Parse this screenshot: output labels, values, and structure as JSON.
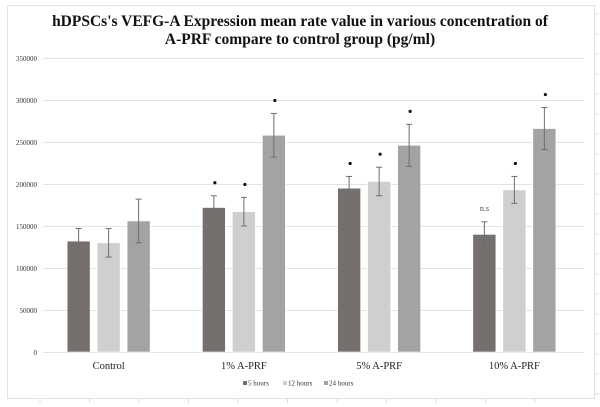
{
  "chart_data": {
    "type": "bar",
    "title": [
      "hDPSCs's VEFG-A Expression mean rate value in various concentration of",
      "A-PRF compare to control group (pg/ml)"
    ],
    "xlabel": "",
    "ylabel": "",
    "ylim": [
      0,
      350000
    ],
    "yticks": [
      0,
      50000,
      100000,
      150000,
      200000,
      250000,
      300000,
      350000
    ],
    "ytick_labels": [
      "0",
      "50000",
      "100000",
      "150000",
      "200000",
      "250000",
      "300000",
      "350000"
    ],
    "grid": true,
    "legend_position": "bottom",
    "categories": [
      "Control",
      "1% A-PRF",
      "5% A-PRF",
      "10% A-PRF"
    ],
    "series": [
      {
        "name": "5 hours",
        "color": "#756f6e",
        "values": [
          132000,
          172000,
          195000,
          140000
        ],
        "errors": [
          15000,
          14000,
          14000,
          15000
        ],
        "annotations": [
          "",
          "•",
          "•",
          "n.s"
        ]
      },
      {
        "name": "12 hours",
        "color": "#d0cecf",
        "values": [
          130000,
          167000,
          203000,
          193000
        ],
        "errors": [
          17000,
          17000,
          17000,
          16000
        ],
        "annotations": [
          "",
          "•",
          "•",
          "•"
        ]
      },
      {
        "name": "24 hours",
        "color": "#a3a3a3",
        "values": [
          156000,
          258000,
          246000,
          266000
        ],
        "errors": [
          26000,
          26000,
          25000,
          25000
        ],
        "annotations": [
          "",
          "•",
          "•",
          "•"
        ]
      }
    ]
  }
}
